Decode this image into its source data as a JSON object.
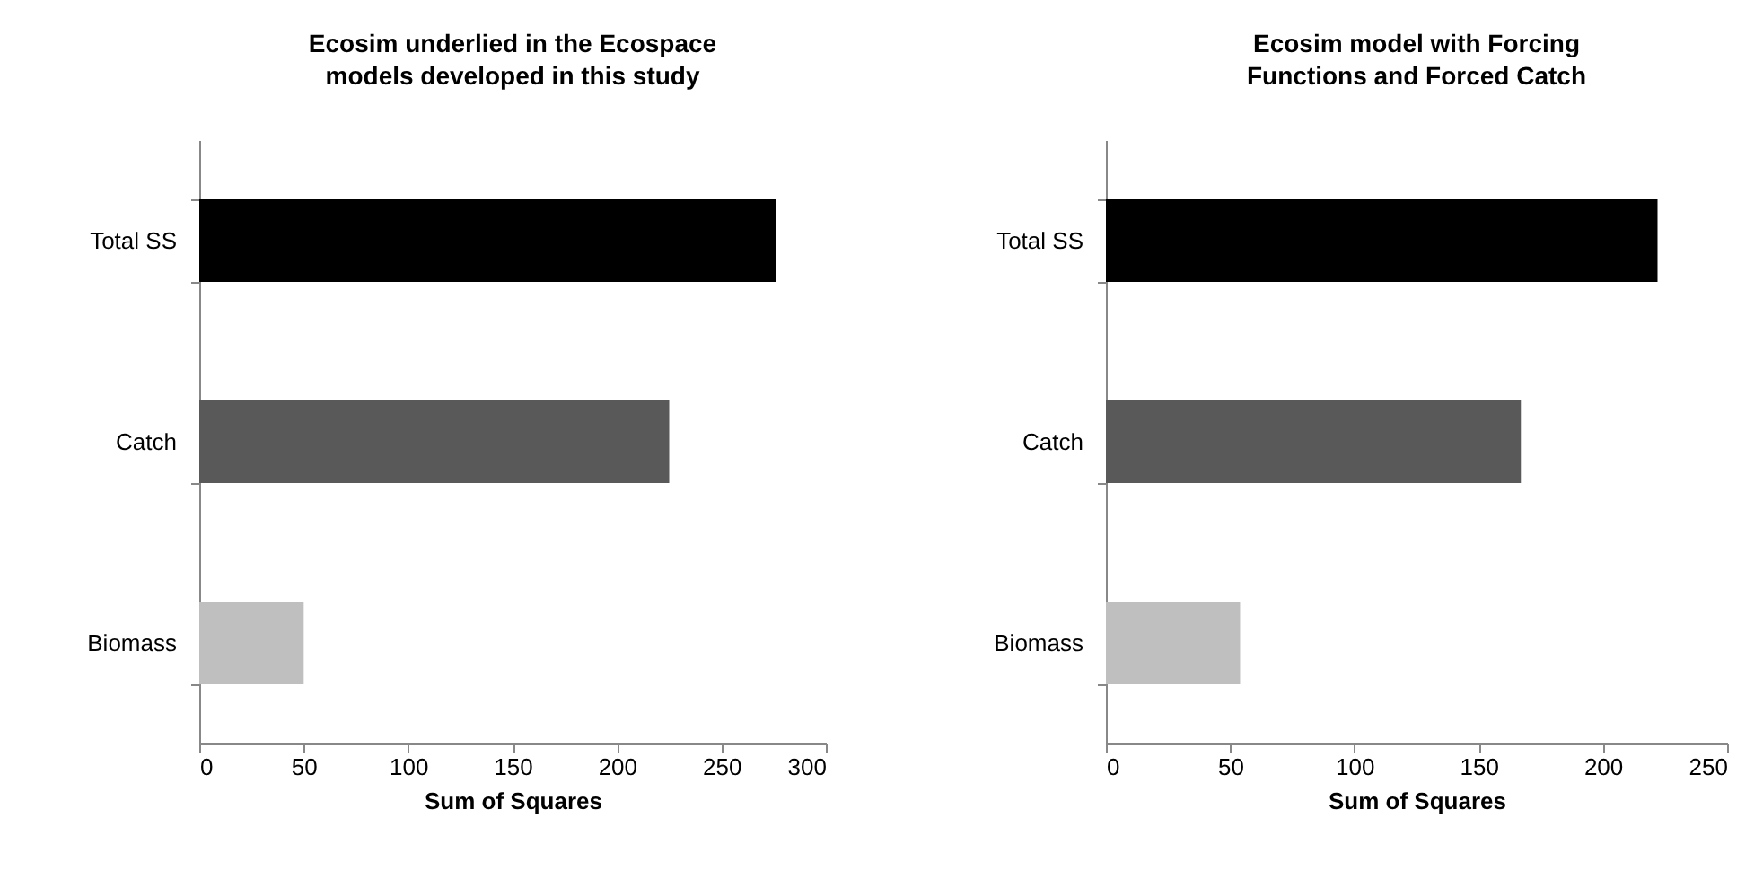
{
  "chart_data": [
    {
      "type": "bar",
      "orientation": "horizontal",
      "title": "Ecosim underlied in the Ecospace models developed in this study",
      "xlabel": "Sum of Squares",
      "categories": [
        "Total SS",
        "Catch",
        "Biomass"
      ],
      "values": [
        276,
        225,
        50
      ],
      "colors": [
        "#000000",
        "#595959",
        "#bfbfbf"
      ],
      "xlim": [
        0,
        300
      ],
      "xticks": [
        0,
        50,
        100,
        150,
        200,
        250,
        300
      ],
      "grid": false
    },
    {
      "type": "bar",
      "orientation": "horizontal",
      "title": "Ecosim model with Forcing Functions and Forced Catch",
      "xlabel": "Sum of Squares",
      "categories": [
        "Total SS",
        "Catch",
        "Biomass"
      ],
      "values": [
        222,
        167,
        54
      ],
      "colors": [
        "#000000",
        "#595959",
        "#bfbfbf"
      ],
      "xlim": [
        0,
        250
      ],
      "xticks": [
        0,
        50,
        100,
        150,
        200,
        250
      ],
      "grid": false
    }
  ]
}
